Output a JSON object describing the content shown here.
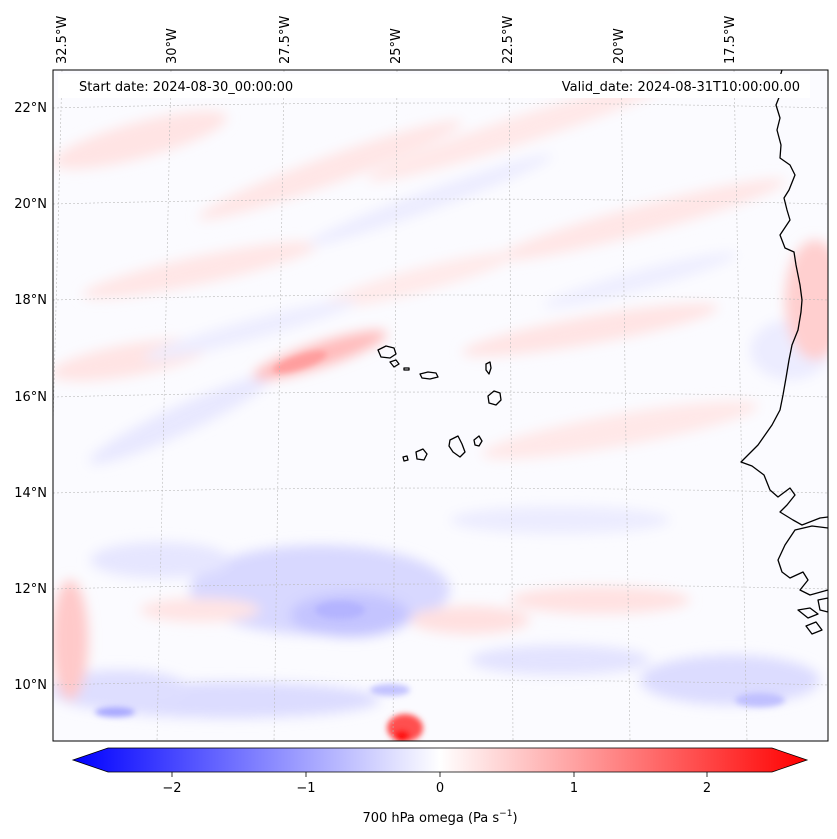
{
  "info": {
    "start_date": "Start date: 2024-08-30_00:00:00",
    "valid_date": "Valid_date: 2024-08-31T10:00:00.00"
  },
  "colorbar": {
    "label": "700 hPa omega (Pa s",
    "label_sup": "−1",
    "label_end": ")",
    "ticks": [
      "−2",
      "−1",
      "0",
      "1",
      "2"
    ],
    "cmap": "bwr",
    "range": [
      -2.7,
      2.7
    ],
    "extend": "both"
  },
  "chart_data": {
    "type": "heatmap",
    "variable": "700 hPa omega",
    "units": "Pa s−1",
    "lon_ticks": [
      "32.5°W",
      "30°W",
      "27.5°W",
      "25°W",
      "22.5°W",
      "20°W",
      "17.5°W"
    ],
    "lat_ticks": [
      "22°N",
      "20°N",
      "18°N",
      "16°N",
      "14°N",
      "12°N",
      "10°N"
    ],
    "lon_values": [
      -32.5,
      -30,
      -27.5,
      -25,
      -22.5,
      -20,
      -17.5
    ],
    "lat_values": [
      22,
      20,
      18,
      16,
      14,
      12,
      10
    ],
    "grid": "dashed",
    "colorbar_ticks": [
      -2,
      -1,
      0,
      1,
      2
    ]
  }
}
